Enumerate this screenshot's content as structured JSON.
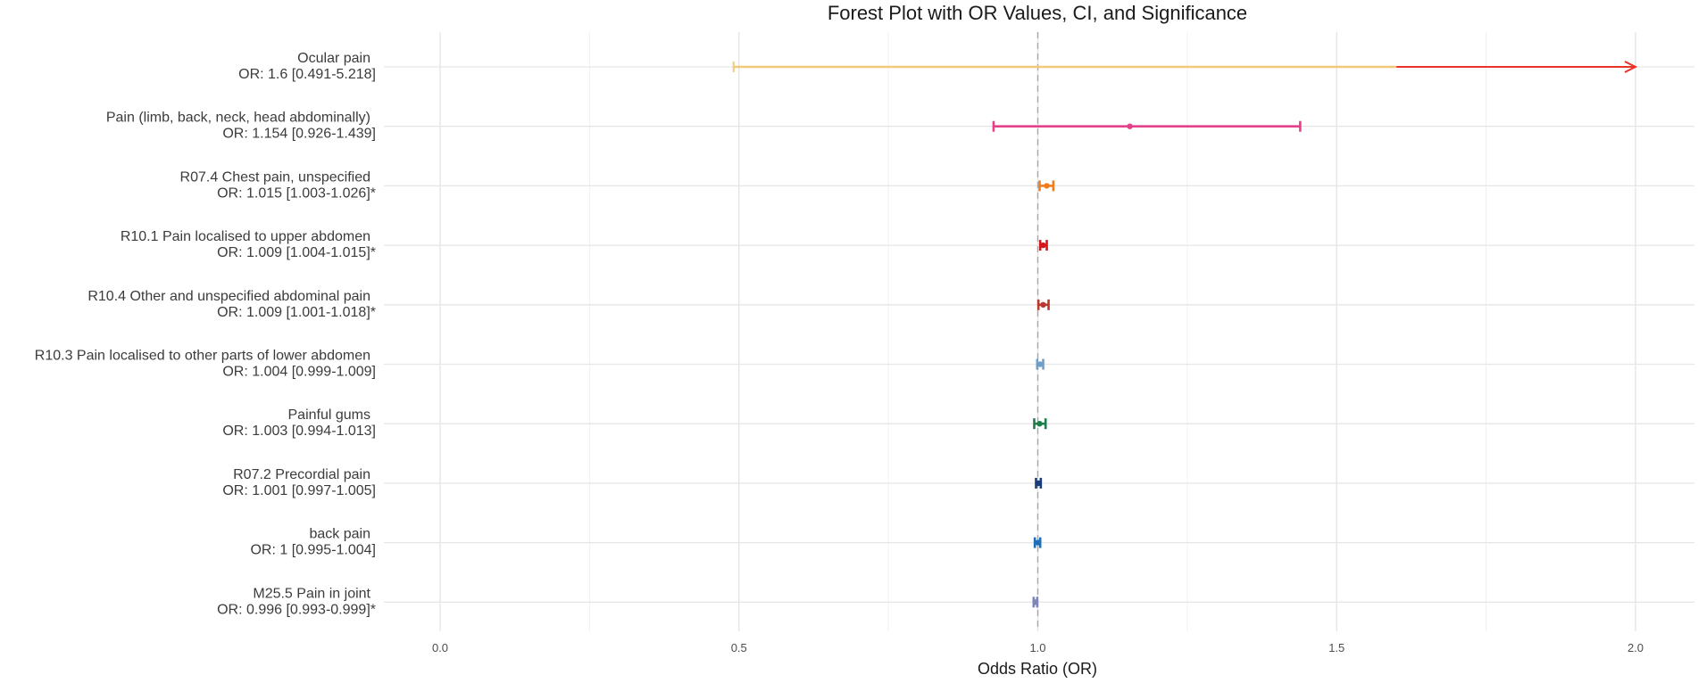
{
  "chart_data": {
    "type": "forest",
    "title": "Forest Plot with OR Values, CI, and Significance",
    "xlabel": "Odds Ratio (OR)",
    "ylabel": "",
    "xlim": [
      0.0,
      2.0
    ],
    "x_ticks": [
      0.0,
      0.5,
      1.0,
      1.5,
      2.0
    ],
    "x_tick_labels": [
      "0.0",
      "0.5",
      "1.0",
      "1.5",
      "2.0"
    ],
    "reference_line": 1.0,
    "grid": true,
    "rows": [
      {
        "label": "Ocular pain",
        "or_text": "OR: 1.6 [0.491-5.218]",
        "or": 1.6,
        "lower": 0.491,
        "upper": 5.218,
        "significant": false,
        "color": "#f2c97a",
        "arrow_color": "#e8322a"
      },
      {
        "label": "Pain (limb, back, neck, head abdominally)",
        "or_text": "OR: 1.154 [0.926-1.439]",
        "or": 1.154,
        "lower": 0.926,
        "upper": 1.439,
        "significant": false,
        "color": "#e6408a"
      },
      {
        "label": "R07.4 Chest pain, unspecified",
        "or_text": "OR: 1.015 [1.003-1.026]*",
        "or": 1.015,
        "lower": 1.003,
        "upper": 1.026,
        "significant": true,
        "color": "#ee7d1e"
      },
      {
        "label": "R10.1 Pain localised to upper abdomen",
        "or_text": "OR: 1.009 [1.004-1.015]*",
        "or": 1.009,
        "lower": 1.004,
        "upper": 1.015,
        "significant": true,
        "color": "#d4161c"
      },
      {
        "label": "R10.4 Other and unspecified abdominal pain",
        "or_text": "OR: 1.009 [1.001-1.018]*",
        "or": 1.009,
        "lower": 1.001,
        "upper": 1.018,
        "significant": true,
        "color": "#b8392e"
      },
      {
        "label": "R10.3 Pain localised to other parts of lower abdomen",
        "or_text": "OR: 1.004 [0.999-1.009]",
        "or": 1.004,
        "lower": 0.999,
        "upper": 1.009,
        "significant": false,
        "color": "#6f9fc8"
      },
      {
        "label": "Painful gums",
        "or_text": "OR: 1.003 [0.994-1.013]",
        "or": 1.003,
        "lower": 0.994,
        "upper": 1.013,
        "significant": false,
        "color": "#1f7d4a"
      },
      {
        "label": "R07.2 Precordial pain",
        "or_text": "OR: 1.001 [0.997-1.005]",
        "or": 1.001,
        "lower": 0.997,
        "upper": 1.005,
        "significant": false,
        "color": "#1b3c7a"
      },
      {
        "label": "back pain",
        "or_text": "OR: 1 [0.995-1.004]",
        "or": 1.0,
        "lower": 0.995,
        "upper": 1.004,
        "significant": false,
        "color": "#1f6fb8"
      },
      {
        "label": "M25.5 Pain in joint",
        "or_text": "OR: 0.996 [0.993-0.999]*",
        "or": 0.996,
        "lower": 0.993,
        "upper": 0.999,
        "significant": true,
        "color": "#7f86b8"
      }
    ]
  }
}
